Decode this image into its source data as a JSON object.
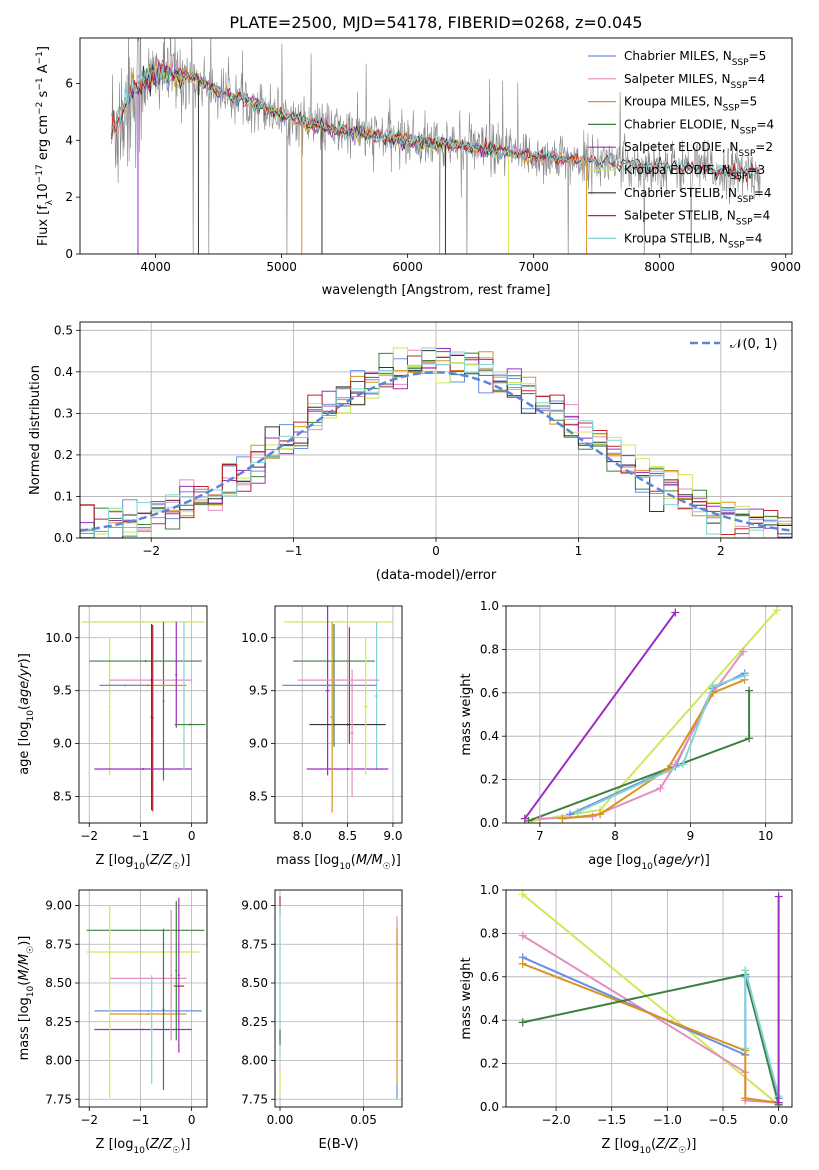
{
  "figure": {
    "title": "PLATE=2500, MJD=54178, FIBERID=0268, z=0.045"
  },
  "colors": {
    "Chabrier MILES": "#6b8fe0",
    "Salpeter MILES": "#e38fc0",
    "Kroupa MILES": "#d9931f",
    "Chabrier ELODIE": "#3f7f3f",
    "Salpeter ELODIE": "#9b2ec0",
    "Kroupa ELODIE": "#cfe85a",
    "Chabrier STELIB": "#333333",
    "Salpeter STELIB": "#c0282d",
    "Kroupa STELIB": "#82d4d6",
    "spectrum": "#888888",
    "normal_curve": "#5b86d6",
    "grid": "#b0b0b0"
  },
  "chart_data": [
    {
      "id": "spectrum",
      "type": "line",
      "xlabel": "wavelength [Angstrom, rest frame]",
      "ylabel": "Flux [f_λ 10^-17 erg cm^-2 s^-1 A^-1]",
      "xlim": [
        3400,
        9050
      ],
      "ylim": [
        0,
        7.6
      ],
      "xticks": [
        4000,
        5000,
        6000,
        7000,
        8000,
        9000
      ],
      "yticks": [
        0,
        2,
        4,
        6
      ],
      "grid": false,
      "legend_position": "upper-right",
      "legend": [
        {
          "model": "Chabrier MILES",
          "nssp": 5
        },
        {
          "model": "Salpeter MILES",
          "nssp": 4
        },
        {
          "model": "Kroupa MILES",
          "nssp": 5
        },
        {
          "model": "Chabrier ELODIE",
          "nssp": 4
        },
        {
          "model": "Salpeter ELODIE",
          "nssp": 2
        },
        {
          "model": "Kroupa ELODIE",
          "nssp": 3
        },
        {
          "model": "Chabrier STELIB",
          "nssp": 4
        },
        {
          "model": "Salpeter STELIB",
          "nssp": 4
        },
        {
          "model": "Kroupa STELIB",
          "nssp": 4
        }
      ],
      "observed_range": [
        3650,
        8800
      ],
      "continuum_knots": {
        "x": [
          3650,
          3700,
          3800,
          3900,
          4000,
          4100,
          4300,
          4500,
          4800,
          5000,
          5200,
          5500,
          6000,
          6500,
          7000,
          7500,
          8000,
          8500,
          8800
        ],
        "y": [
          4.3,
          4.7,
          5.6,
          6.1,
          6.3,
          6.4,
          6.2,
          5.7,
          5.3,
          4.9,
          4.6,
          4.3,
          4.0,
          3.75,
          3.45,
          3.25,
          3.1,
          2.95,
          2.85
        ]
      },
      "model_ranges": {
        "MILES": [
          3650,
          7430
        ],
        "ELODIE": [
          3900,
          6800
        ],
        "STELIB": [
          3650,
          8800
        ]
      }
    },
    {
      "id": "residuals",
      "type": "histogram",
      "xlabel": "(data-model)/error",
      "ylabel": "Normed distribution",
      "xlim": [
        -2.5,
        2.5
      ],
      "ylim": [
        0,
        0.52
      ],
      "xticks": [
        -2,
        -1,
        0,
        1,
        2
      ],
      "yticks": [
        0.0,
        0.1,
        0.2,
        0.3,
        0.4,
        0.5
      ],
      "grid": true,
      "legend_position": "upper-right",
      "legend": [
        {
          "label": "𝒩(0, 1)",
          "style": "dashed"
        }
      ],
      "bin_width": 0.1,
      "reference_curve": "normal(0,1)"
    },
    {
      "id": "age_vs_Z",
      "type": "errorbar",
      "xlabel": "Z [log10(Z/Z☉)]",
      "ylabel": "age  [log10(age/yr)]",
      "xlim": [
        -2.2,
        0.3
      ],
      "ylim": [
        8.25,
        10.3
      ],
      "xticks": [
        -2,
        -1,
        0
      ],
      "yticks": [
        8.5,
        9.0,
        9.5,
        10.0
      ],
      "grid": true,
      "points": [
        {
          "series": "Kroupa ELODIE",
          "x": -0.95,
          "xerr": 1.2,
          "y": 10.15,
          "yerr": 0.01
        },
        {
          "series": "Kroupa ELODIE",
          "x": -1.6,
          "xerr": 0.02,
          "y": 9.35,
          "yerr": 0.65
        },
        {
          "series": "Chabrier ELODIE",
          "x": -0.9,
          "xerr": 1.1,
          "y": 9.78,
          "yerr": 0.01
        },
        {
          "series": "Chabrier ELODIE",
          "x": -0.55,
          "xerr": 0.02,
          "y": 9.4,
          "yerr": 0.75
        },
        {
          "series": "Salpeter MILES",
          "x": -0.8,
          "xerr": 0.8,
          "y": 9.6,
          "yerr": 0.01
        },
        {
          "series": "Kroupa MILES",
          "x": -0.85,
          "xerr": 0.75,
          "y": 9.55,
          "yerr": 0.01
        },
        {
          "series": "Chabrier STELIB",
          "x": -0.78,
          "xerr": 0.02,
          "y": 9.25,
          "yerr": 0.88
        },
        {
          "series": "Salpeter STELIB",
          "x": -0.76,
          "xerr": 0.02,
          "y": 9.24,
          "yerr": 0.88
        },
        {
          "series": "Salpeter ELODIE",
          "x": -0.95,
          "xerr": 0.95,
          "y": 8.76,
          "yerr": 0.01
        },
        {
          "series": "Salpeter ELODIE",
          "x": -0.3,
          "xerr": 0.02,
          "y": 9.65,
          "yerr": 0.5
        },
        {
          "series": "Kroupa STELIB",
          "x": -0.15,
          "xerr": 0.02,
          "y": 9.45,
          "yerr": 0.7
        },
        {
          "series": "Chabrier ELODIE",
          "x": -0.03,
          "xerr": 0.3,
          "y": 9.18,
          "yerr": 0.01
        },
        {
          "series": "Chabrier MILES",
          "x": -1.3,
          "xerr": 0.5,
          "y": 9.55,
          "yerr": 0.01
        }
      ]
    },
    {
      "id": "age_vs_mass",
      "type": "errorbar",
      "xlabel": "mass [log10(M/M☉)]",
      "ylabel": "",
      "xlim": [
        7.7,
        9.1
      ],
      "ylim": [
        8.25,
        10.3
      ],
      "xticks": [
        8.0,
        8.5,
        9.0
      ],
      "yticks": [
        8.5,
        9.0,
        9.5,
        10.0
      ],
      "grid": true,
      "points": [
        {
          "series": "Kroupa ELODIE",
          "x": 8.4,
          "xerr": 0.6,
          "y": 10.15,
          "yerr": 0.01
        },
        {
          "series": "Salpeter ELODIE",
          "x": 8.28,
          "xerr": 0.02,
          "y": 9.5,
          "yerr": 0.8
        },
        {
          "series": "Chabrier ELODIE",
          "x": 8.35,
          "xerr": 0.02,
          "y": 9.55,
          "yerr": 0.58
        },
        {
          "series": "Salpeter STELIB",
          "x": 8.52,
          "xerr": 0.02,
          "y": 9.55,
          "yerr": 0.55
        },
        {
          "series": "Kroupa STELIB",
          "x": 8.82,
          "xerr": 0.02,
          "y": 9.45,
          "yerr": 0.7
        },
        {
          "series": "Chabrier ELODIE",
          "x": 8.35,
          "xerr": 0.45,
          "y": 9.78,
          "yerr": 0.01
        },
        {
          "series": "Salpeter MILES",
          "x": 8.4,
          "xerr": 0.45,
          "y": 9.6,
          "yerr": 0.01
        },
        {
          "series": "Chabrier MILES",
          "x": 8.3,
          "xerr": 0.52,
          "y": 9.55,
          "yerr": 0.01
        },
        {
          "series": "Chabrier STELIB",
          "x": 8.5,
          "xerr": 0.42,
          "y": 9.18,
          "yerr": 0.01
        },
        {
          "series": "Salpeter ELODIE",
          "x": 8.5,
          "xerr": 0.45,
          "y": 8.76,
          "yerr": 0.01
        },
        {
          "series": "Kroupa MILES",
          "x": 8.33,
          "xerr": 0.02,
          "y": 9.25,
          "yerr": 0.9
        },
        {
          "series": "Kroupa ELODIE",
          "x": 8.7,
          "xerr": 0.02,
          "y": 9.35,
          "yerr": 0.65
        },
        {
          "series": "Salpeter MILES",
          "x": 8.55,
          "xerr": 0.02,
          "y": 9.1,
          "yerr": 0.6
        }
      ]
    },
    {
      "id": "weight_vs_age",
      "type": "line",
      "xlabel": "age  [log10(age/yr)]",
      "ylabel": "mass weight",
      "xlim": [
        6.55,
        10.35
      ],
      "ylim": [
        0,
        1.0
      ],
      "xticks": [
        7,
        8,
        9,
        10
      ],
      "yticks": [
        0.0,
        0.2,
        0.4,
        0.6,
        0.8,
        1.0
      ],
      "grid": true,
      "series": [
        {
          "name": "Salpeter ELODIE",
          "x": [
            6.8,
            8.8
          ],
          "y": [
            0.02,
            0.97
          ]
        },
        {
          "name": "Kroupa ELODIE",
          "x": [
            6.9,
            7.8,
            10.15
          ],
          "y": [
            0.01,
            0.06,
            0.98
          ]
        },
        {
          "name": "Chabrier ELODIE",
          "x": [
            6.85,
            9.78,
            9.78
          ],
          "y": [
            0.01,
            0.39,
            0.61
          ]
        },
        {
          "name": "Chabrier MILES",
          "x": [
            7.4,
            8.8,
            9.3,
            9.72
          ],
          "y": [
            0.04,
            0.26,
            0.62,
            0.69
          ]
        },
        {
          "name": "Salpeter MILES",
          "x": [
            7.0,
            7.7,
            8.6,
            8.8,
            9.3,
            9.7
          ],
          "y": [
            0.02,
            0.03,
            0.16,
            0.27,
            0.6,
            0.79
          ]
        },
        {
          "name": "Kroupa MILES",
          "x": [
            7.3,
            7.8,
            8.7,
            9.3,
            9.72
          ],
          "y": [
            0.02,
            0.04,
            0.25,
            0.6,
            0.66
          ]
        },
        {
          "name": "Kroupa STELIB",
          "x": [
            7.5,
            8.9,
            9.3,
            9.72
          ],
          "y": [
            0.05,
            0.27,
            0.63,
            0.68
          ]
        }
      ]
    },
    {
      "id": "mass_vs_Z",
      "type": "errorbar",
      "xlabel": "Z [log10(Z/Z☉)]",
      "ylabel": "mass [log10(M/M☉)]",
      "xlim": [
        -2.2,
        0.3
      ],
      "ylim": [
        7.7,
        9.1
      ],
      "xticks": [
        -2,
        -1,
        0
      ],
      "yticks": [
        7.75,
        8.0,
        8.25,
        8.5,
        8.75,
        9.0
      ],
      "grid": true,
      "points": [
        {
          "series": "Chabrier ELODIE",
          "x": -0.9,
          "xerr": 1.15,
          "y": 8.84,
          "yerr": 0.005
        },
        {
          "series": "Kroupa ELODIE",
          "x": -0.95,
          "xerr": 1.1,
          "y": 8.7,
          "yerr": 0.005
        },
        {
          "series": "Salpeter MILES",
          "x": -0.85,
          "xerr": 0.75,
          "y": 8.53,
          "yerr": 0.005
        },
        {
          "series": "Kroupa MILES",
          "x": -0.85,
          "xerr": 0.75,
          "y": 8.3,
          "yerr": 0.005
        },
        {
          "series": "Salpeter ELODIE",
          "x": -0.95,
          "xerr": 0.95,
          "y": 8.2,
          "yerr": 0.005
        },
        {
          "series": "Chabrier MILES",
          "x": -0.85,
          "xerr": 1.05,
          "y": 8.32,
          "yerr": 0.005
        },
        {
          "series": "Kroupa ELODIE",
          "x": -1.6,
          "xerr": 0.02,
          "y": 8.38,
          "yerr": 0.62
        },
        {
          "series": "Chabrier ELODIE",
          "x": -0.55,
          "xerr": 0.02,
          "y": 8.33,
          "yerr": 0.52
        },
        {
          "series": "Salpeter MILES",
          "x": -0.4,
          "xerr": 0.02,
          "y": 8.55,
          "yerr": 0.42
        },
        {
          "series": "Salpeter ELODIE",
          "x": -0.25,
          "xerr": 0.02,
          "y": 8.55,
          "yerr": 0.5
        },
        {
          "series": "Salpeter STELIB",
          "x": -0.25,
          "xerr": 0.1,
          "y": 8.48,
          "yerr": 0.005
        },
        {
          "series": "Chabrier ELODIE",
          "x": -0.3,
          "xerr": 0.02,
          "y": 8.58,
          "yerr": 0.45
        },
        {
          "series": "Kroupa STELIB",
          "x": -0.78,
          "xerr": 0.02,
          "y": 8.2,
          "yerr": 0.35
        }
      ]
    },
    {
      "id": "mass_vs_ebv",
      "type": "errorbar",
      "xlabel": "E(B-V)",
      "ylabel": "",
      "xlim": [
        -0.003,
        0.073
      ],
      "ylim": [
        7.7,
        9.1
      ],
      "xticks": [
        0.0,
        0.05
      ],
      "yticks": [
        7.75,
        8.0,
        8.25,
        8.5,
        8.75,
        9.0
      ],
      "grid": true,
      "points": [
        {
          "series": "Salpeter STELIB",
          "x": 0.0,
          "xerr": 0.0004,
          "y": 9.0,
          "yerr": 0.06
        },
        {
          "series": "Kroupa STELIB",
          "x": 0.0,
          "xerr": 0.0004,
          "y": 8.5,
          "yerr": 0.5
        },
        {
          "series": "Chabrier ELODIE",
          "x": 0.0,
          "xerr": 0.0004,
          "y": 8.15,
          "yerr": 0.05
        },
        {
          "series": "Kroupa ELODIE",
          "x": 0.0,
          "xerr": 0.0004,
          "y": 7.85,
          "yerr": 0.08
        },
        {
          "series": "Salpeter MILES",
          "x": 0.07,
          "xerr": 0.0004,
          "y": 8.78,
          "yerr": 0.15
        },
        {
          "series": "Kroupa MILES",
          "x": 0.07,
          "xerr": 0.0004,
          "y": 8.35,
          "yerr": 0.5
        },
        {
          "series": "Chabrier MILES",
          "x": 0.07,
          "xerr": 0.0004,
          "y": 7.8,
          "yerr": 0.05
        }
      ]
    },
    {
      "id": "weight_vs_Z",
      "type": "line",
      "xlabel": "Z [log10(Z/Z☉)]",
      "ylabel": "mass weight",
      "xlim": [
        -2.45,
        0.12
      ],
      "ylim": [
        0,
        1.0
      ],
      "xticks": [
        -2.0,
        -1.5,
        -1.0,
        -0.5,
        0.0
      ],
      "yticks": [
        0.0,
        0.2,
        0.4,
        0.6,
        0.8,
        1.0
      ],
      "grid": true,
      "series": [
        {
          "name": "Kroupa ELODIE",
          "x": [
            -2.3,
            0.0
          ],
          "y": [
            0.98,
            0.01
          ]
        },
        {
          "name": "Salpeter MILES",
          "x": [
            -2.3,
            -0.3,
            -0.3,
            0.0
          ],
          "y": [
            0.79,
            0.16,
            0.03,
            0.02
          ]
        },
        {
          "name": "Chabrier MILES",
          "x": [
            -2.3,
            -0.3,
            -0.3,
            0.0
          ],
          "y": [
            0.69,
            0.24,
            0.6,
            0.04
          ]
        },
        {
          "name": "Kroupa MILES",
          "x": [
            -2.3,
            -0.3,
            -0.3,
            0.0
          ],
          "y": [
            0.66,
            0.26,
            0.04,
            0.02
          ]
        },
        {
          "name": "Chabrier ELODIE",
          "x": [
            -2.3,
            -0.3,
            0.0
          ],
          "y": [
            0.39,
            0.61,
            0.01
          ]
        },
        {
          "name": "Kroupa STELIB",
          "x": [
            -0.3,
            -0.3,
            0.0
          ],
          "y": [
            0.27,
            0.63,
            0.05
          ]
        },
        {
          "name": "Salpeter ELODIE",
          "x": [
            0.0,
            0.0
          ],
          "y": [
            0.02,
            0.97
          ]
        }
      ]
    }
  ]
}
